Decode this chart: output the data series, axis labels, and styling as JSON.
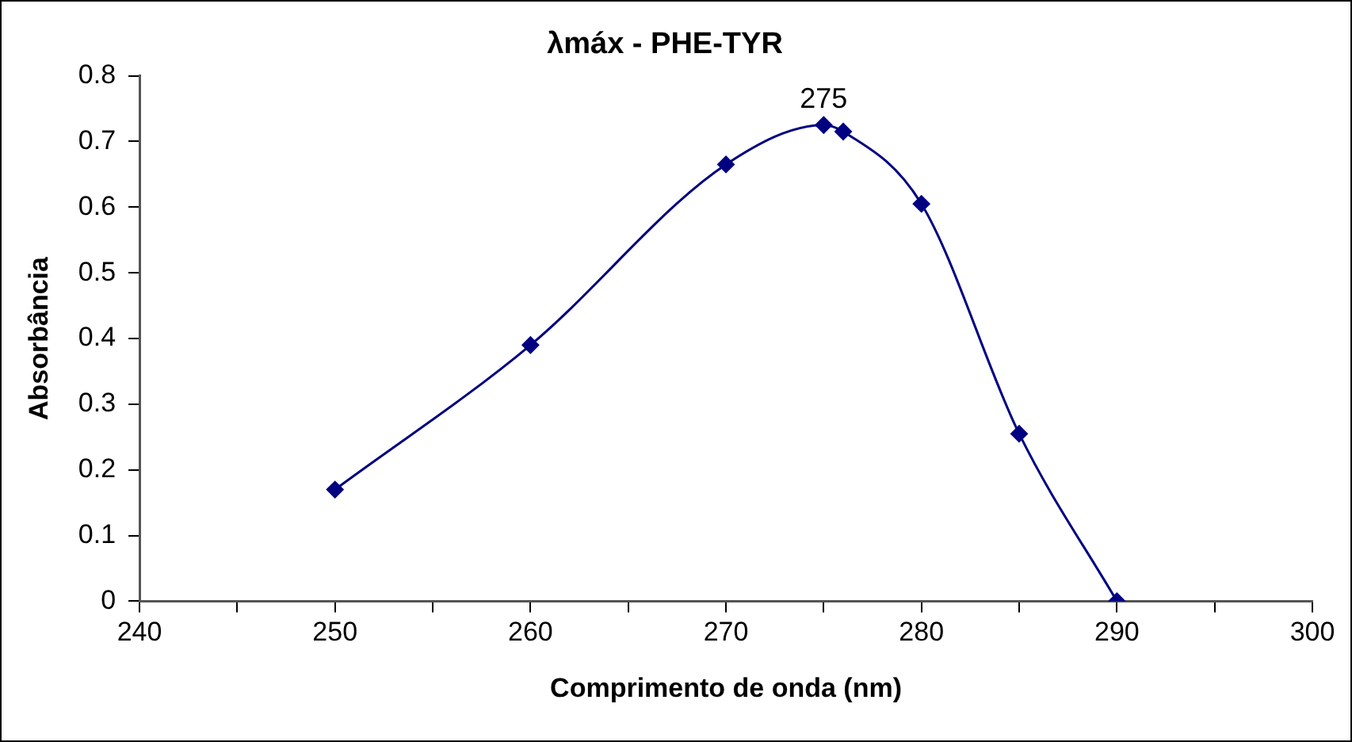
{
  "chart_data": {
    "type": "line",
    "title": "λmáx - PHE-TYR",
    "xlabel": "Comprimento de onda (nm)",
    "ylabel": "Absorbância",
    "x": [
      250,
      260,
      270,
      275,
      276,
      280,
      285,
      290
    ],
    "series": [
      {
        "color": "#000080",
        "values": [
          0.17,
          0.39,
          0.665,
          0.725,
          0.715,
          0.605,
          0.255,
          0
        ]
      }
    ],
    "xlim": [
      240,
      300
    ],
    "xticks": [
      240,
      {
        "value": 245,
        "label": null
      },
      250,
      {
        "value": 255,
        "label": null
      },
      260,
      {
        "value": 265,
        "label": null
      },
      270,
      {
        "value": 275,
        "label": null
      },
      280,
      {
        "value": 285,
        "label": null
      },
      290,
      {
        "value": 295,
        "label": null
      },
      300
    ],
    "ylim": [
      0,
      0.8
    ],
    "yticks": [
      0,
      0.1,
      0.2,
      0.3,
      0.4,
      0.5,
      0.6,
      0.7,
      0.8
    ],
    "annotations": [
      {
        "text": "275",
        "x": 275,
        "y": 0.725
      }
    ],
    "grid": false,
    "legend": false,
    "marker": "diamond",
    "line_style": "solid"
  }
}
